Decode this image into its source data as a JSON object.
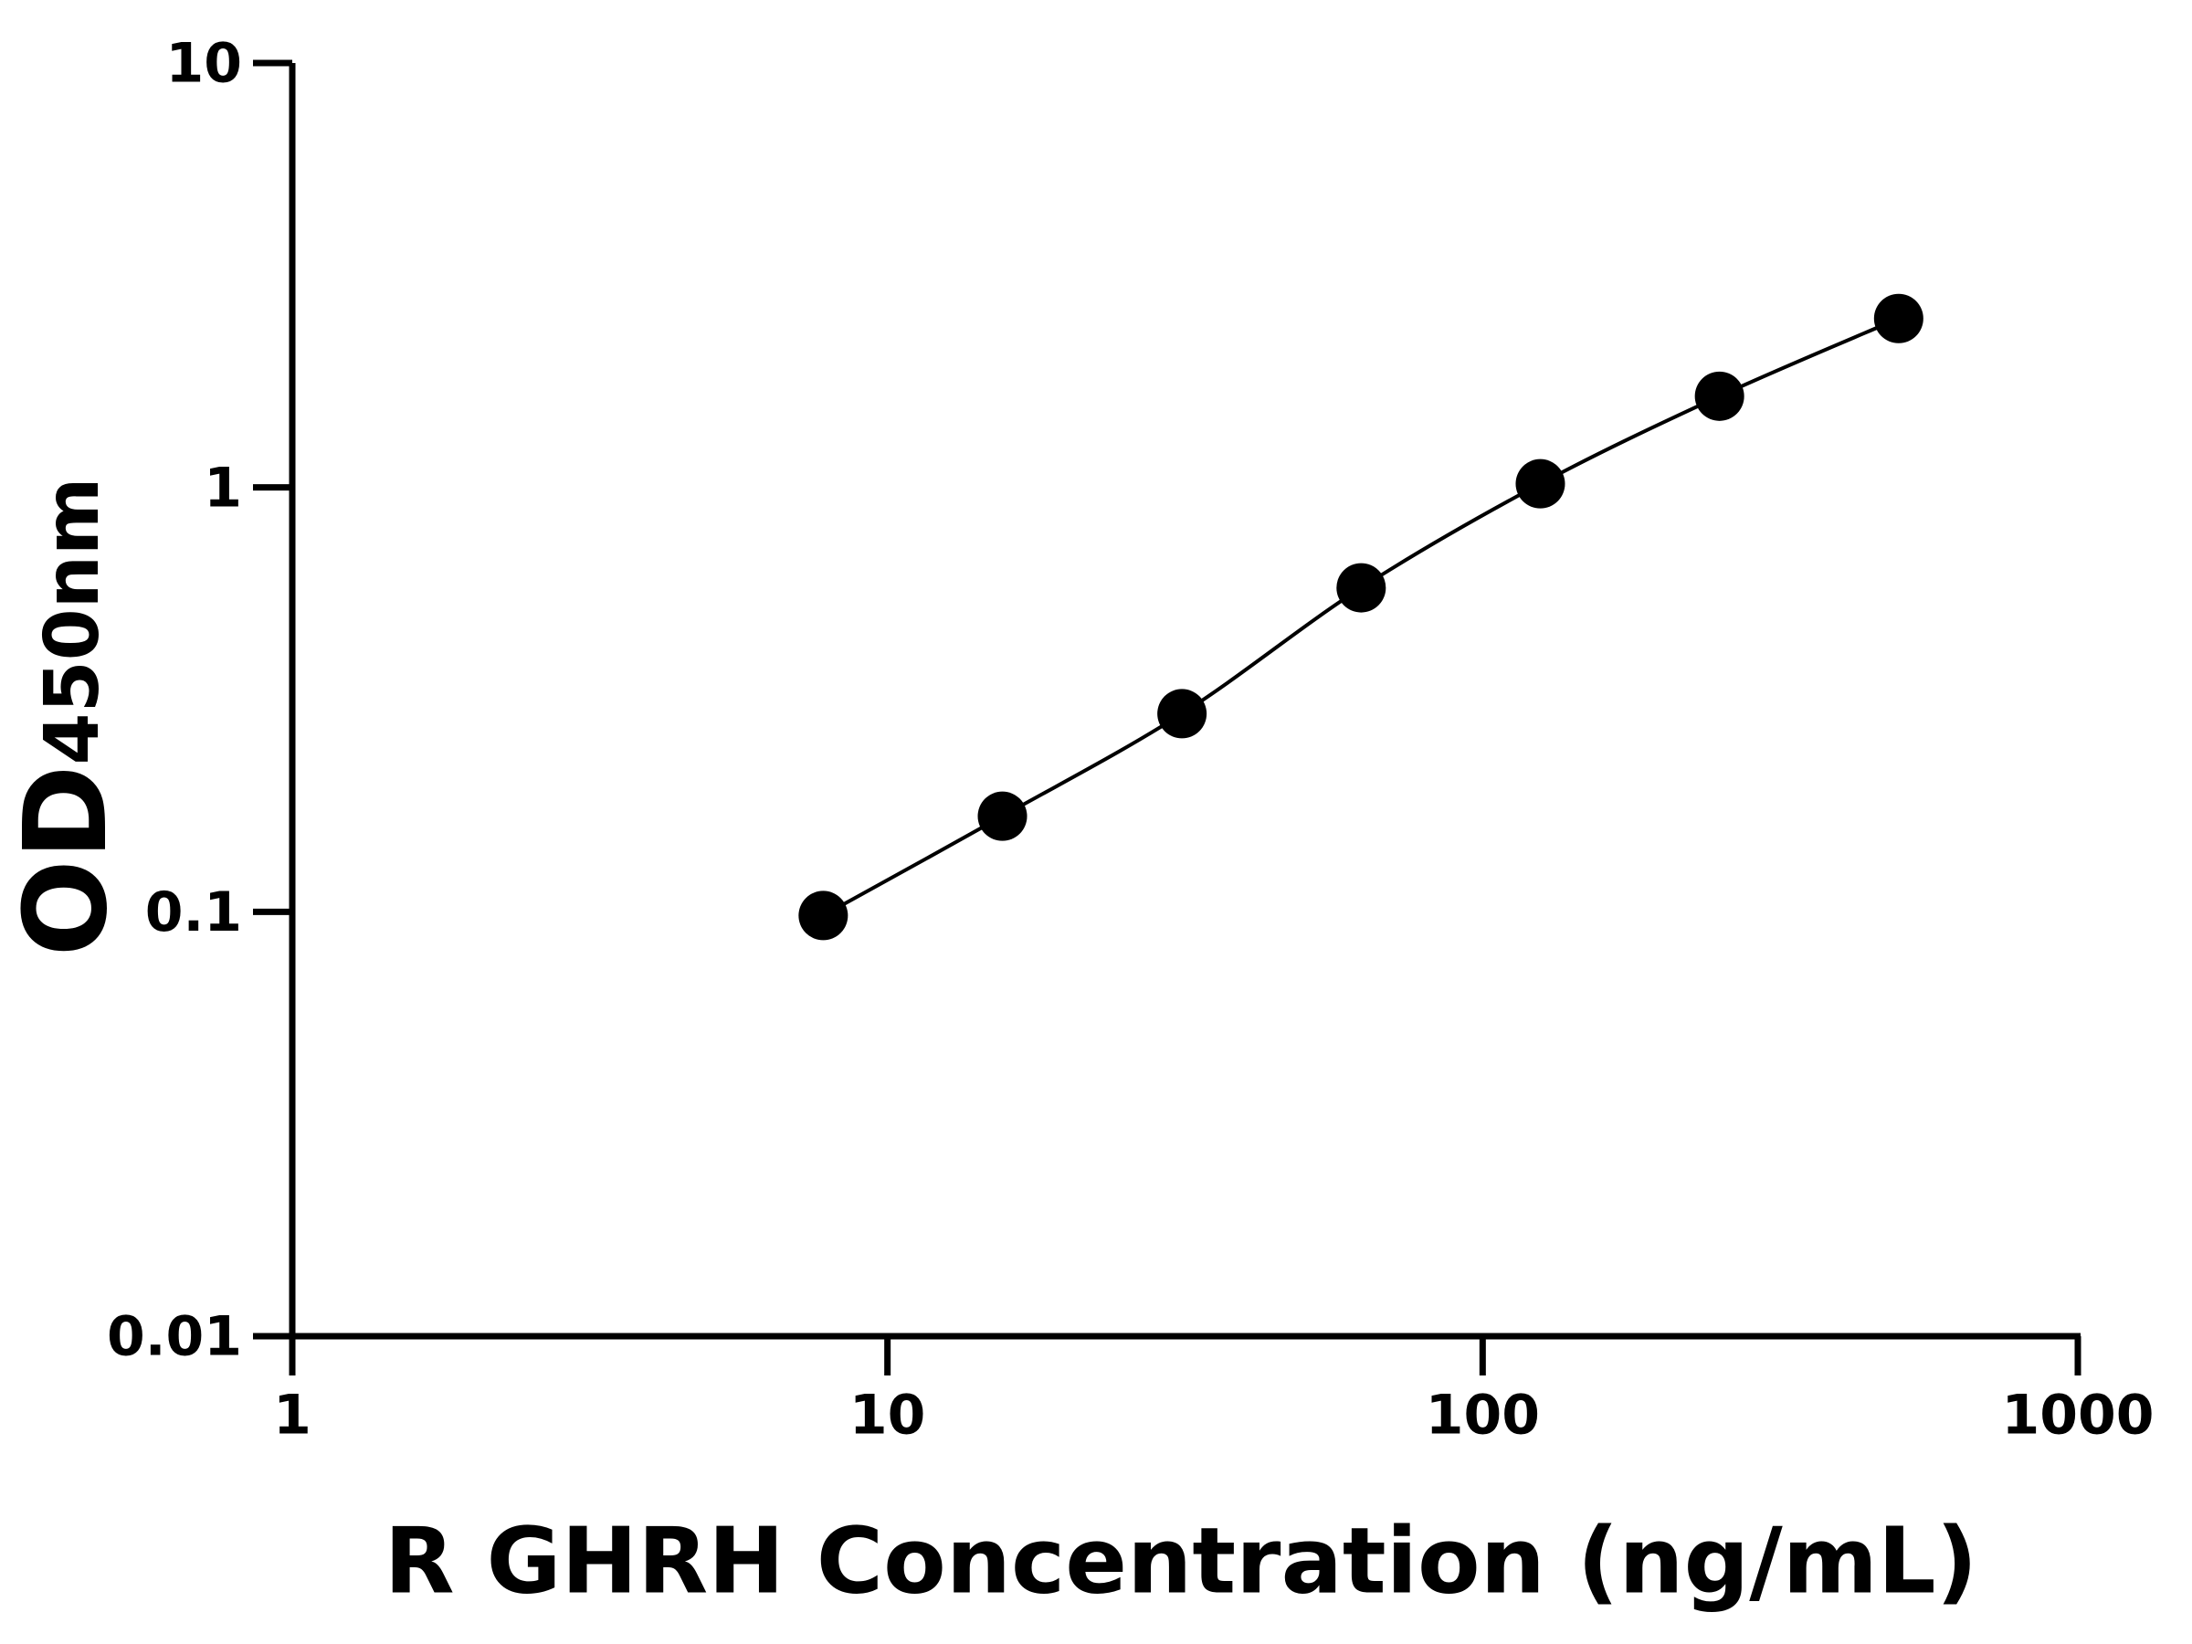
{
  "chart_data": {
    "type": "scatter",
    "xlabel": "R GHRH Concentration (ng/mL)",
    "ylabel": "OD",
    "ylabel_subscript": "450nm",
    "x": [
      7.8,
      15.6,
      31.25,
      62.5,
      125,
      250,
      500
    ],
    "series": [
      {
        "color": "#000000",
        "values": [
          0.098,
          0.168,
          0.293,
          0.58,
          1.02,
          1.64,
          2.5
        ]
      }
    ],
    "xlim": [
      1,
      1000
    ],
    "xticks": [
      1,
      10,
      100,
      1000
    ],
    "ylim": [
      0.01,
      10
    ],
    "yticks": [
      0.01,
      0.1,
      1,
      10
    ],
    "xlog": true,
    "ylog": true,
    "fit_curve": true,
    "grid": false
  }
}
